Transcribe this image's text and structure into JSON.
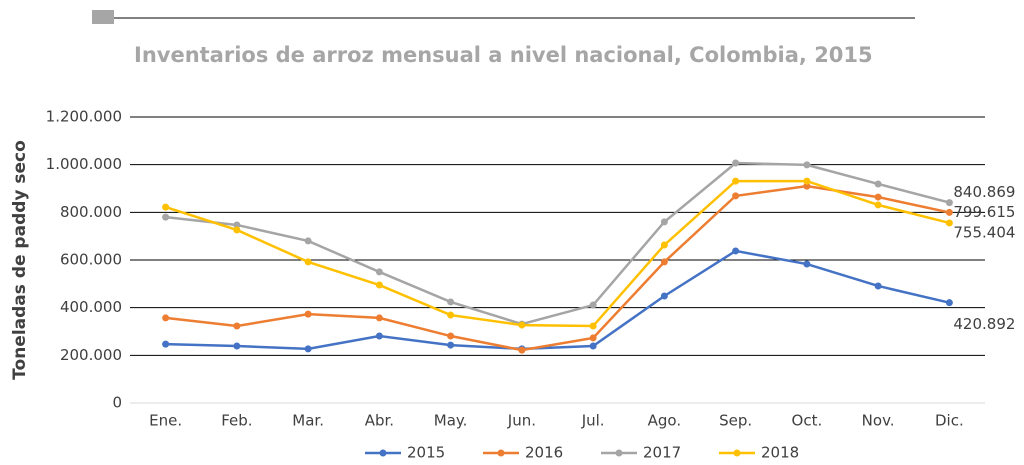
{
  "chart_data": {
    "type": "line",
    "title": "Inventarios de arroz mensual a nivel nacional, Colombia, 2015",
    "y_label": "Toneladas de paddy seco",
    "categories": [
      "Ene.",
      "Feb.",
      "Mar.",
      "Abr.",
      "May.",
      "Jun.",
      "Jul.",
      "Ago.",
      "Sep.",
      "Oct.",
      "Nov.",
      "Dic."
    ],
    "series": [
      {
        "name": "2015",
        "color": "#4472c4",
        "values": [
          247000,
          239000,
          227000,
          281000,
          243000,
          227000,
          239000,
          449000,
          638000,
          583000,
          491000,
          420892
        ],
        "value_labels": [
          null,
          null,
          null,
          null,
          null,
          null,
          null,
          null,
          null,
          null,
          null,
          "420.892"
        ]
      },
      {
        "name": "2016",
        "color": "#ed7d31",
        "values": [
          357000,
          323000,
          373000,
          357000,
          281000,
          222000,
          273000,
          592000,
          869000,
          910000,
          864000,
          799615
        ],
        "value_labels": [
          null,
          null,
          null,
          null,
          null,
          null,
          null,
          null,
          null,
          null,
          null,
          "799.615"
        ]
      },
      {
        "name": "2017",
        "color": "#a5a5a5",
        "values": [
          780000,
          747000,
          680000,
          550000,
          424000,
          331000,
          411000,
          760000,
          1007000,
          999000,
          919000,
          840869
        ],
        "value_labels": [
          null,
          null,
          null,
          null,
          null,
          null,
          null,
          null,
          null,
          null,
          null,
          "840.869"
        ]
      },
      {
        "name": "2018",
        "color": "#ffc000",
        "values": [
          822000,
          726000,
          592000,
          495000,
          369000,
          327000,
          323000,
          663000,
          931000,
          931000,
          831000,
          755404
        ],
        "value_labels": [
          null,
          null,
          null,
          null,
          null,
          null,
          null,
          null,
          null,
          null,
          null,
          "755.404"
        ]
      }
    ],
    "ylim": [
      0,
      1200000
    ],
    "yticks": [
      0,
      {
        "value": 200000,
        "label": "200.000"
      },
      {
        "value": 400000,
        "label": "400.000"
      },
      {
        "value": 600000,
        "label": "600.000"
      },
      {
        "value": 800000,
        "label": "800.000"
      },
      {
        "value": 1000000,
        "label": "1.000.000"
      },
      {
        "value": 1200000,
        "label": "1.200.000"
      }
    ],
    "grid": true,
    "legend": "bottom"
  }
}
